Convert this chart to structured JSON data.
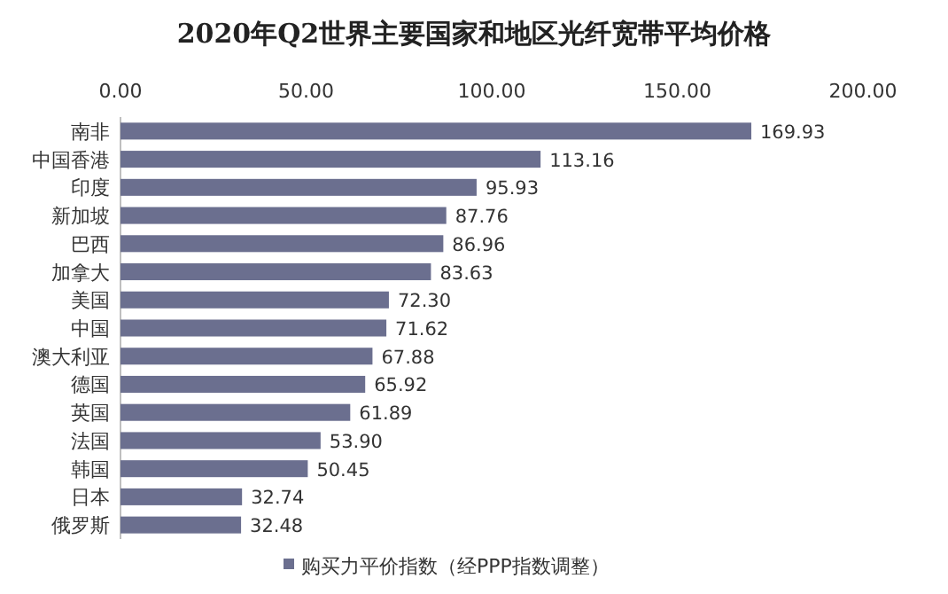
{
  "chart_data": {
    "type": "bar",
    "orientation": "horizontal",
    "title": "2020年Q2世界主要国家和地区光纤宽带平均价格",
    "categories": [
      "南非",
      "中国香港",
      "印度",
      "新加坡",
      "巴西",
      "加拿大",
      "美国",
      "中国",
      "澳大利亚",
      "德国",
      "英国",
      "法国",
      "韩国",
      "日本",
      "俄罗斯"
    ],
    "series": [
      {
        "name": "购买力平价指数（经PPP指数调整）",
        "color": "#6b6f8f",
        "values": [
          169.93,
          113.16,
          95.93,
          87.76,
          86.96,
          83.63,
          72.3,
          71.62,
          67.88,
          65.92,
          61.89,
          53.9,
          50.45,
          32.74,
          32.48
        ],
        "value_labels": [
          "169.93",
          "113.16",
          "95.93",
          "87.76",
          "86.96",
          "83.63",
          "72.30",
          "71.62",
          "67.88",
          "65.92",
          "61.89",
          "53.90",
          "50.45",
          "32.74",
          "32.48"
        ]
      }
    ],
    "xlim": [
      0,
      200
    ],
    "xticks": [
      {
        "value": 0,
        "label": "0.00"
      },
      {
        "value": 50,
        "label": "50.00"
      },
      {
        "value": 100,
        "label": "100.00"
      },
      {
        "value": 150,
        "label": "150.00"
      },
      {
        "value": 200,
        "label": "200.00"
      }
    ],
    "legend": "bottom"
  }
}
